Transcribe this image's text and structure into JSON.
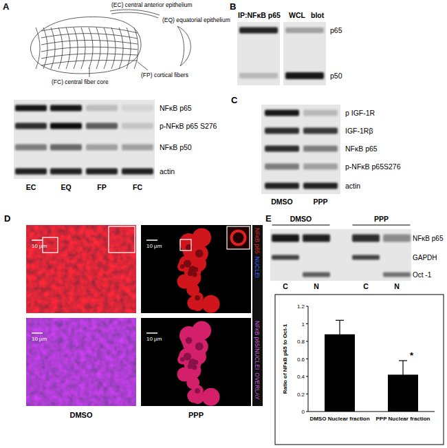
{
  "panel_labels": [
    "A",
    "B",
    "C",
    "D",
    "E"
  ],
  "panel_a": {
    "diagram_labels": [
      "(EC) central anterior epithelium",
      "(EQ) equatorial epithelium",
      "(FP) cortical fibers",
      "(FC) central fiber core"
    ],
    "rows": [
      "NFκB p65",
      "p-NFκB p65 S276",
      "NFκB p50",
      "actin"
    ],
    "lanes": [
      "EC",
      "EQ",
      "FP",
      "FC"
    ]
  },
  "panel_b": {
    "headers": [
      "IP:NFκB p65",
      "WCL",
      "blot"
    ],
    "bands": [
      "p65",
      "p50"
    ]
  },
  "panel_c": {
    "rows": [
      "p IGF-1R",
      "IGF-1Rβ",
      "NFκB p65",
      "p-NFκB p65S276",
      "actin"
    ],
    "lanes": [
      "DMSO",
      "PPP"
    ]
  },
  "panel_d": {
    "columns": [
      "DMSO",
      "PPP"
    ],
    "scale_bar": "10 µm",
    "row_labels": [
      [
        "NFκB p65",
        "NUCLEI"
      ],
      [
        "NFκB p65/NUCLEI",
        "OVERLAY"
      ]
    ]
  },
  "panel_e": {
    "groups": [
      "DMSO",
      "PPP"
    ],
    "rows": [
      "NFκB p65",
      "GAPDH",
      "Oct -1"
    ],
    "lanes": [
      "C",
      "N",
      "C",
      "N"
    ]
  },
  "chart_data": {
    "type": "bar",
    "categories": [
      "DMSO Nuclear fraction",
      "PPP Nuclear fraction"
    ],
    "values": [
      0.88,
      0.42
    ],
    "errors": [
      0.16,
      0.16
    ],
    "ylim": [
      0,
      1.2
    ],
    "yticks": [
      0,
      0.2,
      0.4,
      0.6,
      0.8,
      1,
      1.2
    ],
    "y_label": "Ratio of NFκB p65 to Oct-1",
    "annotations": [
      "*"
    ],
    "color": "#000000"
  }
}
